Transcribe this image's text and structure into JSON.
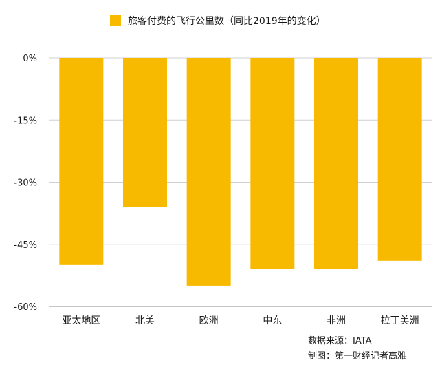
{
  "chart_data": {
    "type": "bar",
    "title": "",
    "legend": [
      "旅客付费的飞行公里数（同比2019年的变化）"
    ],
    "legend_position": "top",
    "categories": [
      "亚太地区",
      "北美",
      "欧洲",
      "中东",
      "非洲",
      "拉丁美洲"
    ],
    "series": [
      {
        "name": "旅客付费的飞行公里数（同比2019年的变化）",
        "values": [
          -50,
          -36,
          -55,
          -51,
          -51,
          -49
        ],
        "color": "#F7BA00"
      }
    ],
    "unit": "%",
    "ylim": [
      -60,
      0
    ],
    "yticks": [
      0,
      -15,
      -30,
      -45,
      -60
    ],
    "ytick_labels": [
      "0%",
      "-15%",
      "-30%",
      "-45%",
      "-60%"
    ],
    "grid": true,
    "xlabel": "",
    "ylabel": ""
  },
  "notes": {
    "source": "数据来源：IATA",
    "credit": "制图：第一财经记者高雅"
  }
}
